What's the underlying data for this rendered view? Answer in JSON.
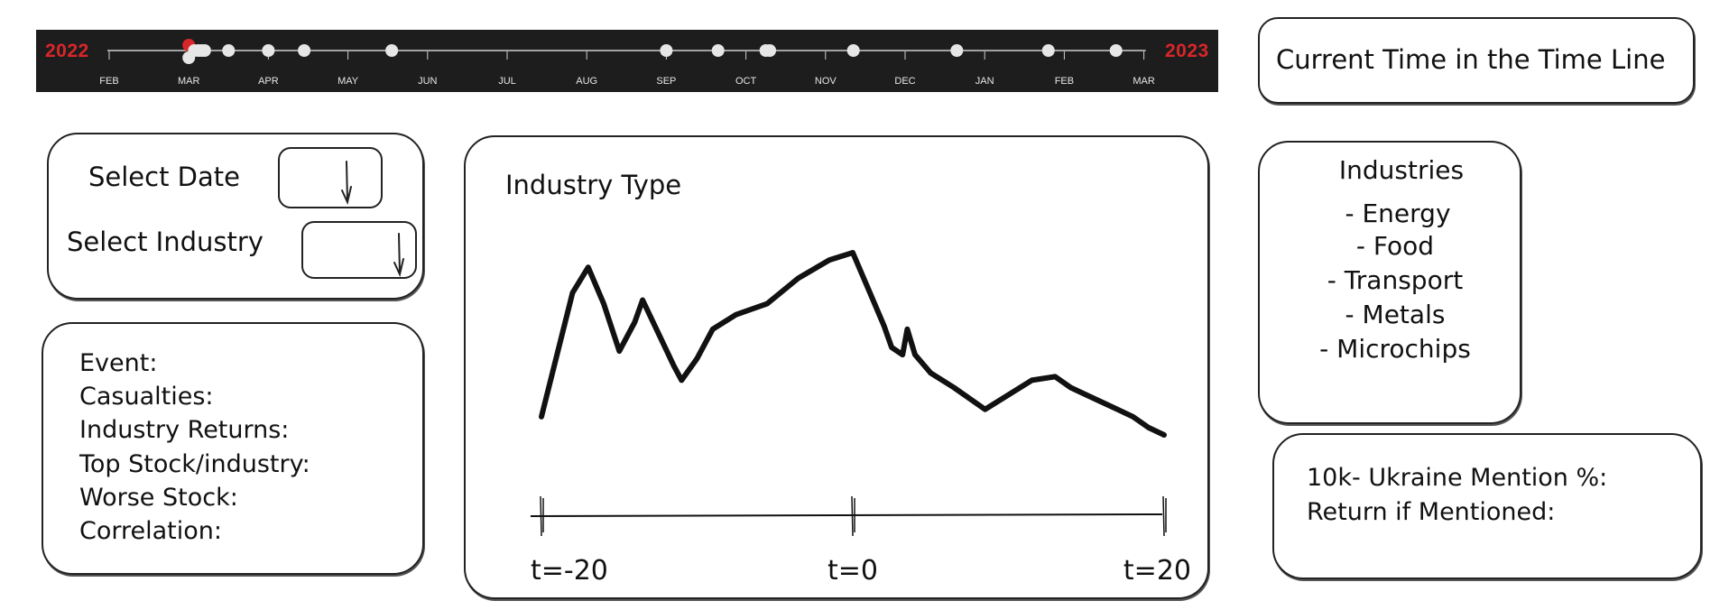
{
  "timeline": {
    "start_year": "2022",
    "end_year": "2023",
    "months": [
      "FEB",
      "MAR",
      "APR",
      "MAY",
      "JUN",
      "JUL",
      "AUG",
      "SEP",
      "OCT",
      "NOV",
      "DEC",
      "JAN",
      "FEB",
      "MAR"
    ],
    "colors": {
      "background": "#1d1d1d",
      "accent": "#d9262a",
      "dot": "#e6e6e6",
      "line": "#cfcfcf"
    },
    "event_marks_month_fraction": [
      1.0,
      1.07,
      1.12,
      1.16,
      1.2,
      1.5,
      2.0,
      2.45,
      3.55,
      7.0,
      7.65,
      8.25,
      8.3,
      9.35,
      10.65,
      11.8,
      12.65
    ],
    "selected_event_index": 0
  },
  "current_time": {
    "label": "Current Time in the Time Line"
  },
  "selectors": {
    "date_label": "Select Date",
    "industry_label": "Select Industry"
  },
  "event_info": {
    "event": "Event:",
    "casualties": "Casualties:",
    "industry_returns": "Industry Returns:",
    "top_stock": "Top Stock/industry:",
    "worse_stock": "Worse Stock:",
    "correlation": "Correlation:"
  },
  "chart": {
    "title": "Industry Type"
  },
  "chart_data": {
    "type": "line",
    "title": "Industry Type",
    "x": [
      -20,
      -18,
      -17,
      -16,
      -15,
      -14,
      -13.5,
      -12.5,
      -11.5,
      -11,
      -10,
      -9,
      -7.5,
      -5.5,
      -3.5,
      -1.5,
      0,
      1,
      2,
      2.5,
      3.2,
      3.5,
      4,
      5,
      6.5,
      8.5,
      10,
      11.5,
      13,
      14,
      15,
      16,
      17,
      18,
      19,
      20
    ],
    "values": [
      0.1,
      0.78,
      0.92,
      0.72,
      0.46,
      0.62,
      0.74,
      0.56,
      0.38,
      0.3,
      0.42,
      0.58,
      0.66,
      0.72,
      0.86,
      0.96,
      1.0,
      0.8,
      0.6,
      0.48,
      0.44,
      0.58,
      0.44,
      0.34,
      0.26,
      0.14,
      0.22,
      0.3,
      0.32,
      0.26,
      0.22,
      0.18,
      0.14,
      0.1,
      0.04,
      0.0
    ],
    "x_ticks": [
      "t=-20",
      "t=0",
      "t=20"
    ],
    "x_tick_values": [
      -20,
      0,
      20
    ],
    "xlim": [
      -20,
      20
    ],
    "ylim": [
      0,
      1
    ]
  },
  "industries": {
    "title": "Industries",
    "items": [
      "- Energy",
      "- Food",
      "- Transport",
      "- Metals",
      "- Microchips"
    ]
  },
  "mentions": {
    "mention_pct": "10k- Ukraine Mention %:",
    "return_if_mentioned": "Return if Mentioned:"
  }
}
